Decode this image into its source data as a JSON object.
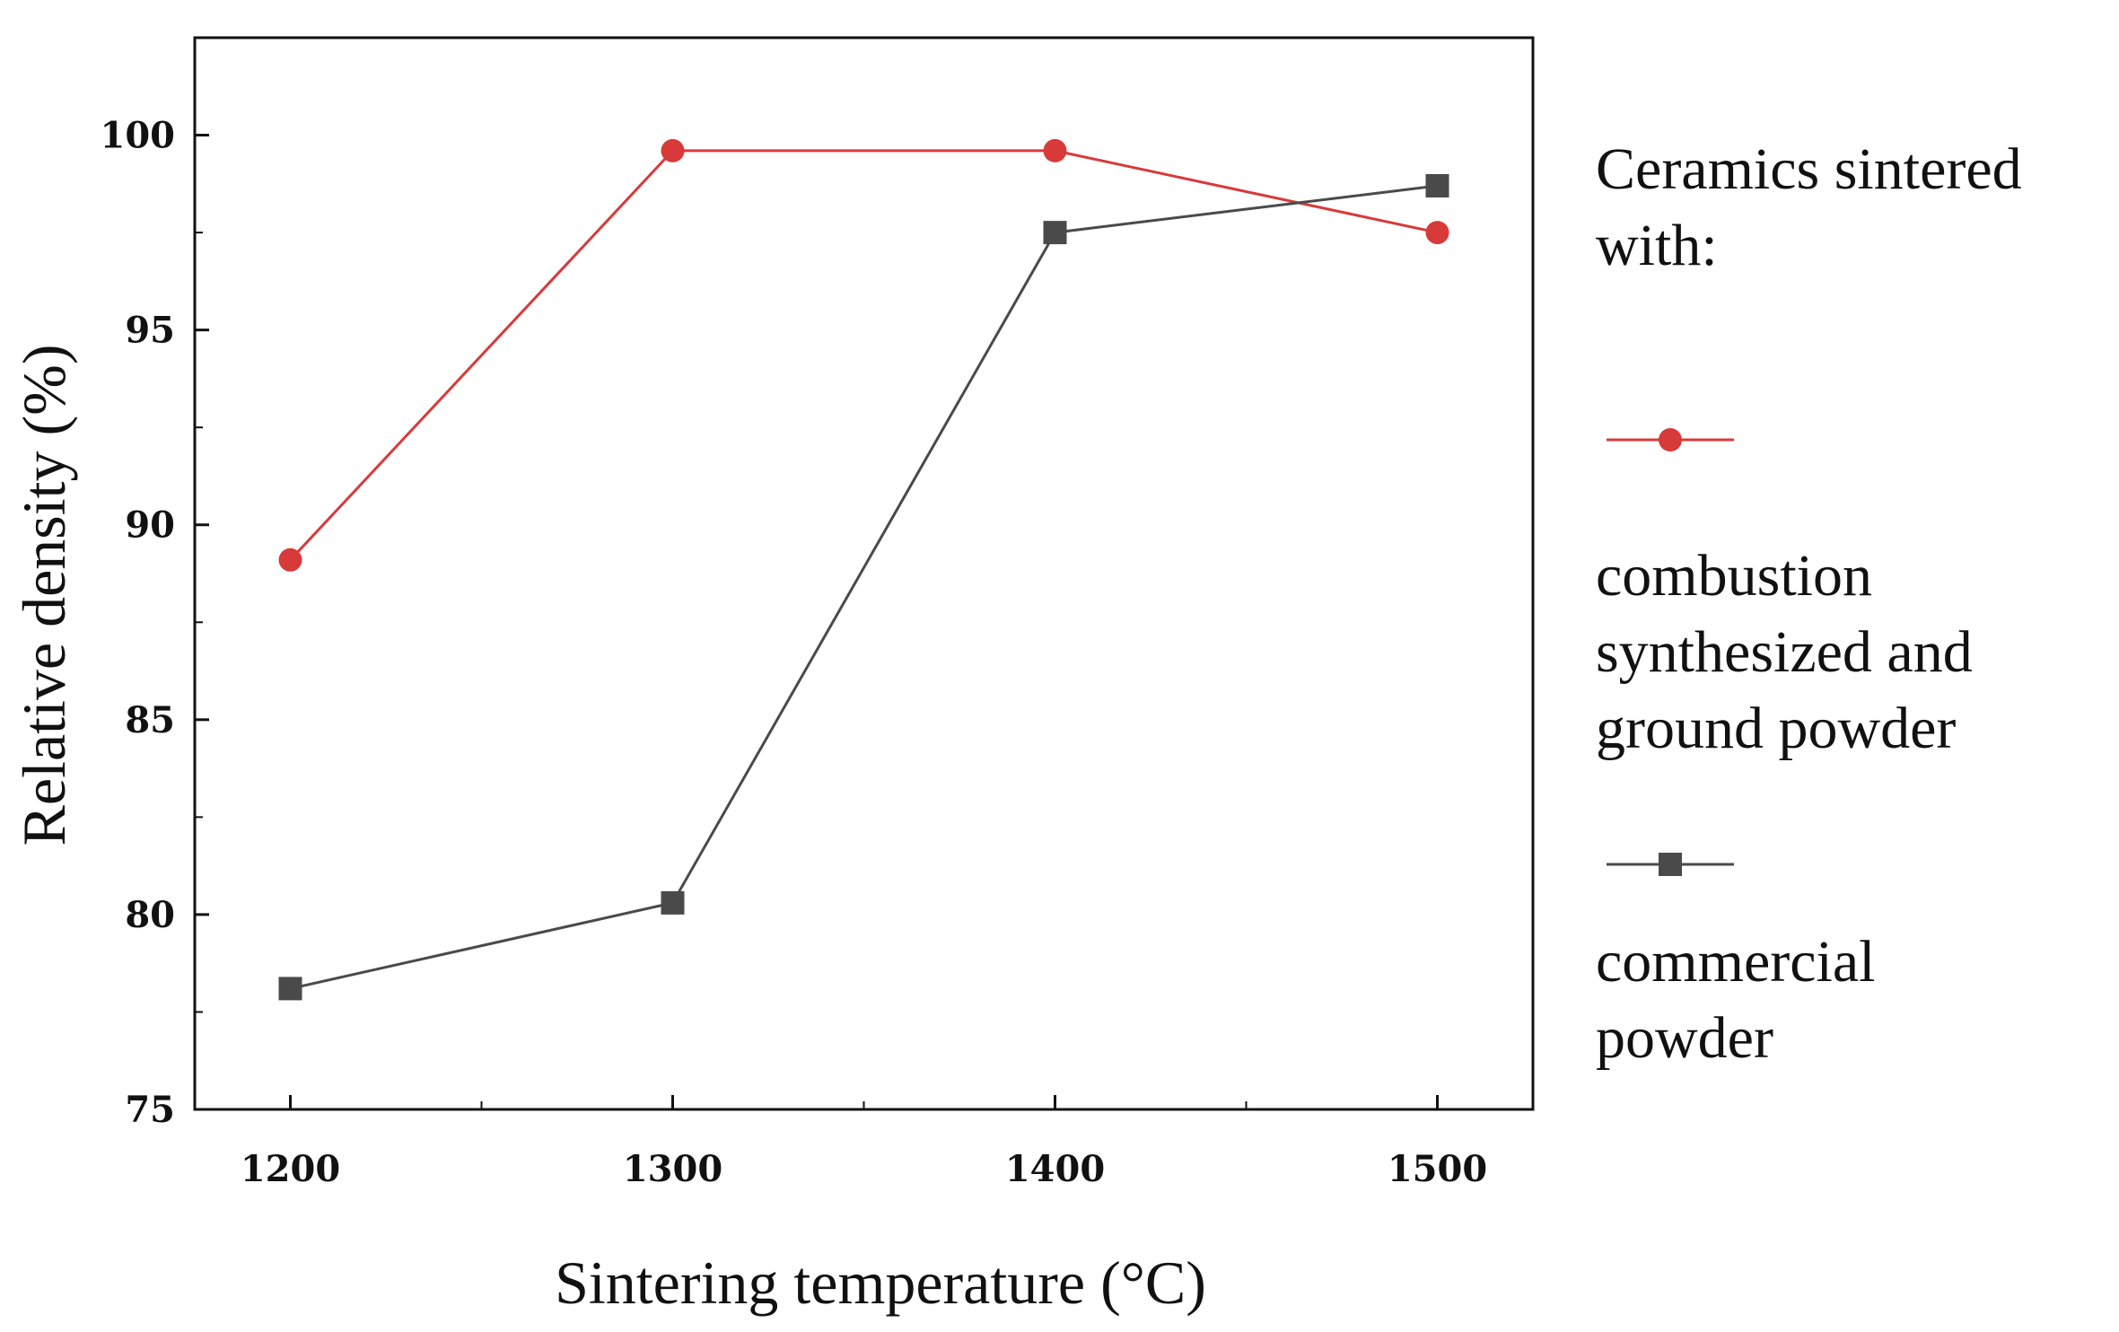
{
  "chart_data": {
    "type": "line",
    "title": "",
    "xlabel": "Sintering temperature (°C)",
    "ylabel": "Relative density (%)",
    "x": [
      1200,
      1300,
      1400,
      1500
    ],
    "xticks": [
      "1200",
      "1300",
      "1400",
      "1500"
    ],
    "xlim": [
      1175,
      1525
    ],
    "yticks": [
      "75",
      "80",
      "85",
      "90",
      "95",
      "100"
    ],
    "ylim": [
      75,
      102.5
    ],
    "grid": false,
    "legend": {
      "title_lines": [
        "Ceramics sintered",
        "with:"
      ],
      "placement": "right"
    },
    "series": [
      {
        "name": "combustion synthesized and ground powder",
        "label_lines": [
          "combustion",
          "synthesized and",
          "ground powder"
        ],
        "marker": "circle",
        "color": "#d83a3a",
        "values": [
          89.1,
          99.6,
          99.6,
          97.5
        ]
      },
      {
        "name": "commercial powder",
        "label_lines": [
          "commercial",
          "powder"
        ],
        "marker": "square",
        "color": "#4a4a4a",
        "values": [
          78.1,
          80.3,
          97.5,
          98.7
        ]
      }
    ]
  }
}
